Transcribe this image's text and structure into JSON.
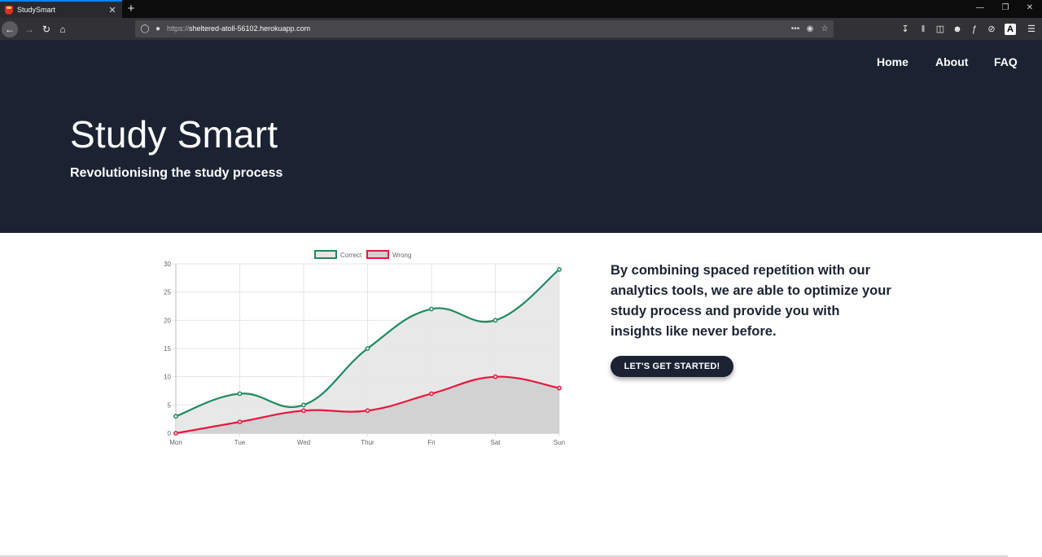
{
  "browser": {
    "tab_title": "StudySmart",
    "tab_close": "✕",
    "new_tab": "+",
    "url_scheme": "https://",
    "url_host": "sheltered-atoll-56102.herokuapp.com",
    "page_actions": "•••",
    "reader_view": "A"
  },
  "site": {
    "nav": {
      "home": "Home",
      "about": "About",
      "faq": "FAQ"
    },
    "hero": {
      "title": "Study Smart",
      "subtitle": "Revolutionising the study process"
    },
    "pitch": "By combining spaced repetition with our analytics tools, we are able to optimize your study process and provide you with insights like never before.",
    "cta_label": "LET'S GET STARTED!"
  },
  "colors": {
    "hero_bg": "#1b2333",
    "correct": "#1e8a5e",
    "wrong": "#e8173d",
    "fill_correct": "#e6e6e6",
    "fill_wrong": "#cfcfcf"
  },
  "chart_data": {
    "type": "line",
    "categories": [
      "Mon",
      "Tue",
      "Wed",
      "Thur",
      "Fri",
      "Sat",
      "Sun"
    ],
    "series": [
      {
        "name": "Correct",
        "values": [
          3,
          7,
          5,
          15,
          22,
          20,
          29
        ]
      },
      {
        "name": "Wrong",
        "values": [
          0,
          2,
          4,
          4,
          7,
          10,
          8
        ]
      }
    ],
    "ylim": [
      0,
      30
    ],
    "yticks": [
      0,
      5,
      10,
      15,
      20,
      25,
      30
    ],
    "grid": true,
    "legend": "top",
    "fill": true
  }
}
